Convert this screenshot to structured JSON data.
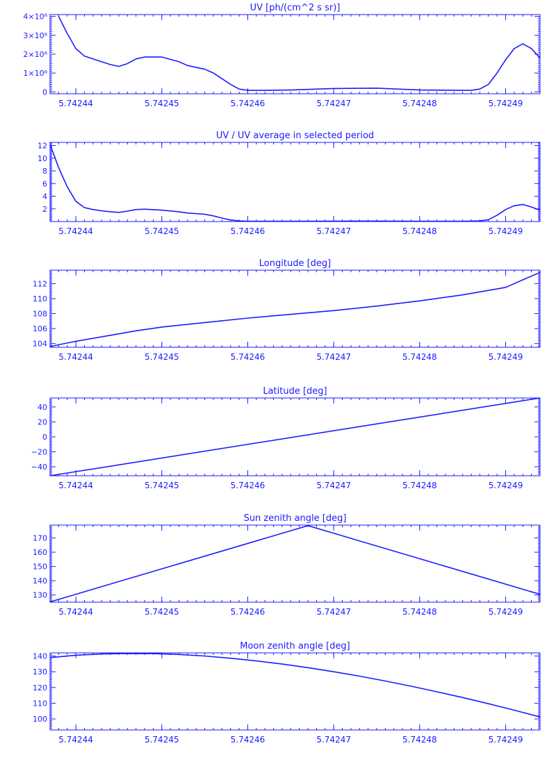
{
  "figure": {
    "line_color": "#1a1aff",
    "background": "#ffffff"
  },
  "shared_x_ticks": [
    "5.74244",
    "5.74245",
    "5.74246",
    "5.74247",
    "5.74248",
    "5.74249"
  ],
  "chart_data": [
    {
      "type": "line",
      "title": "UV [ph/(cm^2 s sr)]",
      "xlim": [
        5.742437,
        5.742494
      ],
      "ylim": [
        -0.1,
        4.1
      ],
      "ytick_values": [
        0,
        1,
        2,
        3,
        4
      ],
      "ytick_labels": [
        "0",
        "1×10⁸",
        "2×10⁸",
        "3×10⁸",
        "4×10⁸"
      ],
      "series": [
        {
          "x": [
            5.742438,
            5.742439,
            5.74244,
            5.742441,
            5.742442,
            5.742443,
            5.742444,
            5.742445,
            5.742446,
            5.742447,
            5.742448,
            5.74245,
            5.742452,
            5.742453,
            5.742455,
            5.742456,
            5.742457,
            5.742458,
            5.742459,
            5.74246,
            5.742462,
            5.742465,
            5.74247,
            5.742475,
            5.74248,
            5.742485,
            5.742486,
            5.742487,
            5.742488,
            5.742489,
            5.74249,
            5.742491,
            5.742492,
            5.742493,
            5.742494
          ],
          "y": [
            4.0,
            3.1,
            2.3,
            1.9,
            1.75,
            1.6,
            1.45,
            1.35,
            1.5,
            1.75,
            1.85,
            1.85,
            1.6,
            1.4,
            1.2,
            1.0,
            0.7,
            0.4,
            0.15,
            0.08,
            0.08,
            0.1,
            0.18,
            0.2,
            0.1,
            0.08,
            0.08,
            0.15,
            0.4,
            1.0,
            1.7,
            2.3,
            2.55,
            2.3,
            1.8
          ]
        }
      ]
    },
    {
      "type": "line",
      "title": "UV / UV average in selected period",
      "xlim": [
        5.742437,
        5.742494
      ],
      "ylim": [
        0,
        12.5
      ],
      "ytick_values": [
        2,
        4,
        6,
        8,
        10,
        12
      ],
      "ytick_labels": [
        "2",
        "4",
        "6",
        "8",
        "10",
        "12"
      ],
      "series": [
        {
          "x": [
            5.742437,
            5.742438,
            5.742439,
            5.74244,
            5.742441,
            5.742442,
            5.742443,
            5.742444,
            5.742445,
            5.742446,
            5.742447,
            5.742448,
            5.74245,
            5.742452,
            5.742453,
            5.742455,
            5.742456,
            5.742457,
            5.742458,
            5.742459,
            5.74246,
            5.742465,
            5.74247,
            5.742475,
            5.74248,
            5.742485,
            5.742487,
            5.742488,
            5.742489,
            5.74249,
            5.742491,
            5.742492,
            5.742493,
            5.742494
          ],
          "y": [
            12.2,
            8.5,
            5.5,
            3.2,
            2.2,
            1.9,
            1.7,
            1.55,
            1.45,
            1.65,
            1.9,
            1.95,
            1.8,
            1.55,
            1.35,
            1.15,
            0.9,
            0.55,
            0.25,
            0.1,
            0.05,
            0.05,
            0.07,
            0.08,
            0.06,
            0.05,
            0.1,
            0.3,
            1.0,
            1.9,
            2.5,
            2.7,
            2.3,
            1.8
          ]
        }
      ]
    },
    {
      "type": "line",
      "title": "Longitude [deg]",
      "xlim": [
        5.742437,
        5.742494
      ],
      "ylim": [
        103.5,
        113.8
      ],
      "ytick_values": [
        104,
        106,
        108,
        110,
        112
      ],
      "ytick_labels": [
        "104",
        "106",
        "108",
        "110",
        "112"
      ],
      "series": [
        {
          "x": [
            5.742437,
            5.74244,
            5.742444,
            5.742447,
            5.74245,
            5.742455,
            5.74246,
            5.742465,
            5.74247,
            5.742475,
            5.74248,
            5.742485,
            5.74249,
            5.742494
          ],
          "y": [
            103.6,
            104.3,
            105.1,
            105.7,
            106.2,
            106.8,
            107.4,
            107.9,
            108.4,
            109.0,
            109.7,
            110.5,
            111.5,
            113.5
          ]
        }
      ]
    },
    {
      "type": "line",
      "title": "Latitude [deg]",
      "xlim": [
        5.742437,
        5.742494
      ],
      "ylim": [
        -52,
        52
      ],
      "ytick_values": [
        -40,
        -20,
        0,
        20,
        40
      ],
      "ytick_labels": [
        "−40",
        "−20",
        "0",
        "20",
        "40"
      ],
      "series": [
        {
          "x": [
            5.742437,
            5.742494
          ],
          "y": [
            -52,
            52
          ]
        }
      ]
    },
    {
      "type": "line",
      "title": "Sun zenith angle [deg]",
      "xlim": [
        5.742437,
        5.742494
      ],
      "ylim": [
        125,
        179
      ],
      "ytick_values": [
        130,
        140,
        150,
        160,
        170
      ],
      "ytick_labels": [
        "130",
        "140",
        "150",
        "160",
        "170"
      ],
      "series": [
        {
          "x": [
            5.742437,
            5.742467,
            5.742494
          ],
          "y": [
            125.2,
            178.6,
            130.5
          ]
        }
      ]
    },
    {
      "type": "line",
      "title": "Moon zenith angle [deg]",
      "xlim": [
        5.742437,
        5.742494
      ],
      "ylim": [
        93,
        142
      ],
      "ytick_values": [
        100,
        110,
        120,
        130,
        140
      ],
      "ytick_labels": [
        "100",
        "110",
        "120",
        "130",
        "140"
      ],
      "series": [
        {
          "x": [
            5.742437,
            5.74244,
            5.742443,
            5.742446,
            5.742449,
            5.742452,
            5.742455,
            5.742458,
            5.742461,
            5.742464,
            5.742467,
            5.74247,
            5.742473,
            5.742476,
            5.742479,
            5.742482,
            5.742485,
            5.742488,
            5.742491,
            5.742494
          ],
          "y": [
            139.0,
            140.5,
            141.3,
            141.6,
            141.5,
            141.0,
            140.0,
            138.6,
            136.9,
            134.9,
            132.6,
            130.0,
            127.2,
            124.1,
            120.8,
            117.3,
            113.6,
            109.7,
            105.6,
            101.3
          ]
        }
      ]
    }
  ]
}
